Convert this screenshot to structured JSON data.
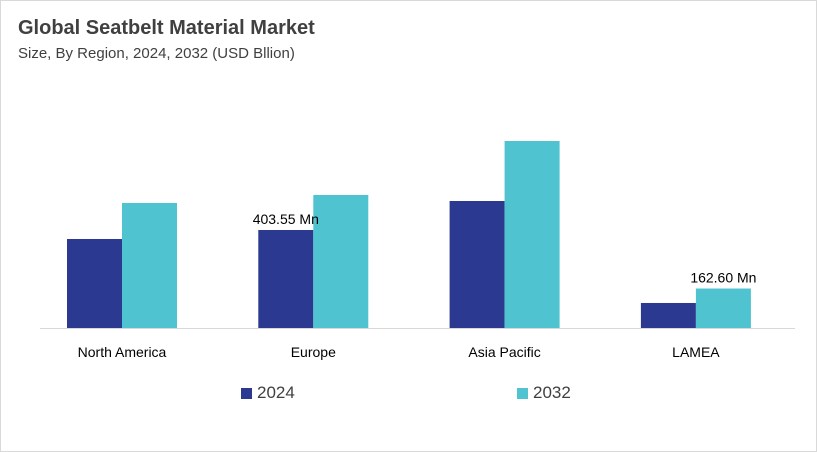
{
  "title": "Global Seatbelt Material Market",
  "subtitle": "Size, By Region, 2024, 2032 (USD Bllion)",
  "chart_data": {
    "type": "bar",
    "categories": [
      "North America",
      "Europe",
      "Asia Pacific",
      "LAMEA"
    ],
    "series": [
      {
        "name": "2024",
        "color": "#2b3990",
        "values": [
          366.5,
          403.55,
          523.0,
          103.0
        ]
      },
      {
        "name": "2032",
        "color": "#4fc3cf",
        "values": [
          514.7,
          547.7,
          770.0,
          162.6
        ]
      }
    ],
    "data_labels": [
      {
        "series": 0,
        "category": 1,
        "text": "403.55 Mn"
      },
      {
        "series": 1,
        "category": 3,
        "text": "162.60 Mn"
      }
    ],
    "ylim": [
      0,
      800
    ],
    "grid": false,
    "legend": "bottom"
  }
}
